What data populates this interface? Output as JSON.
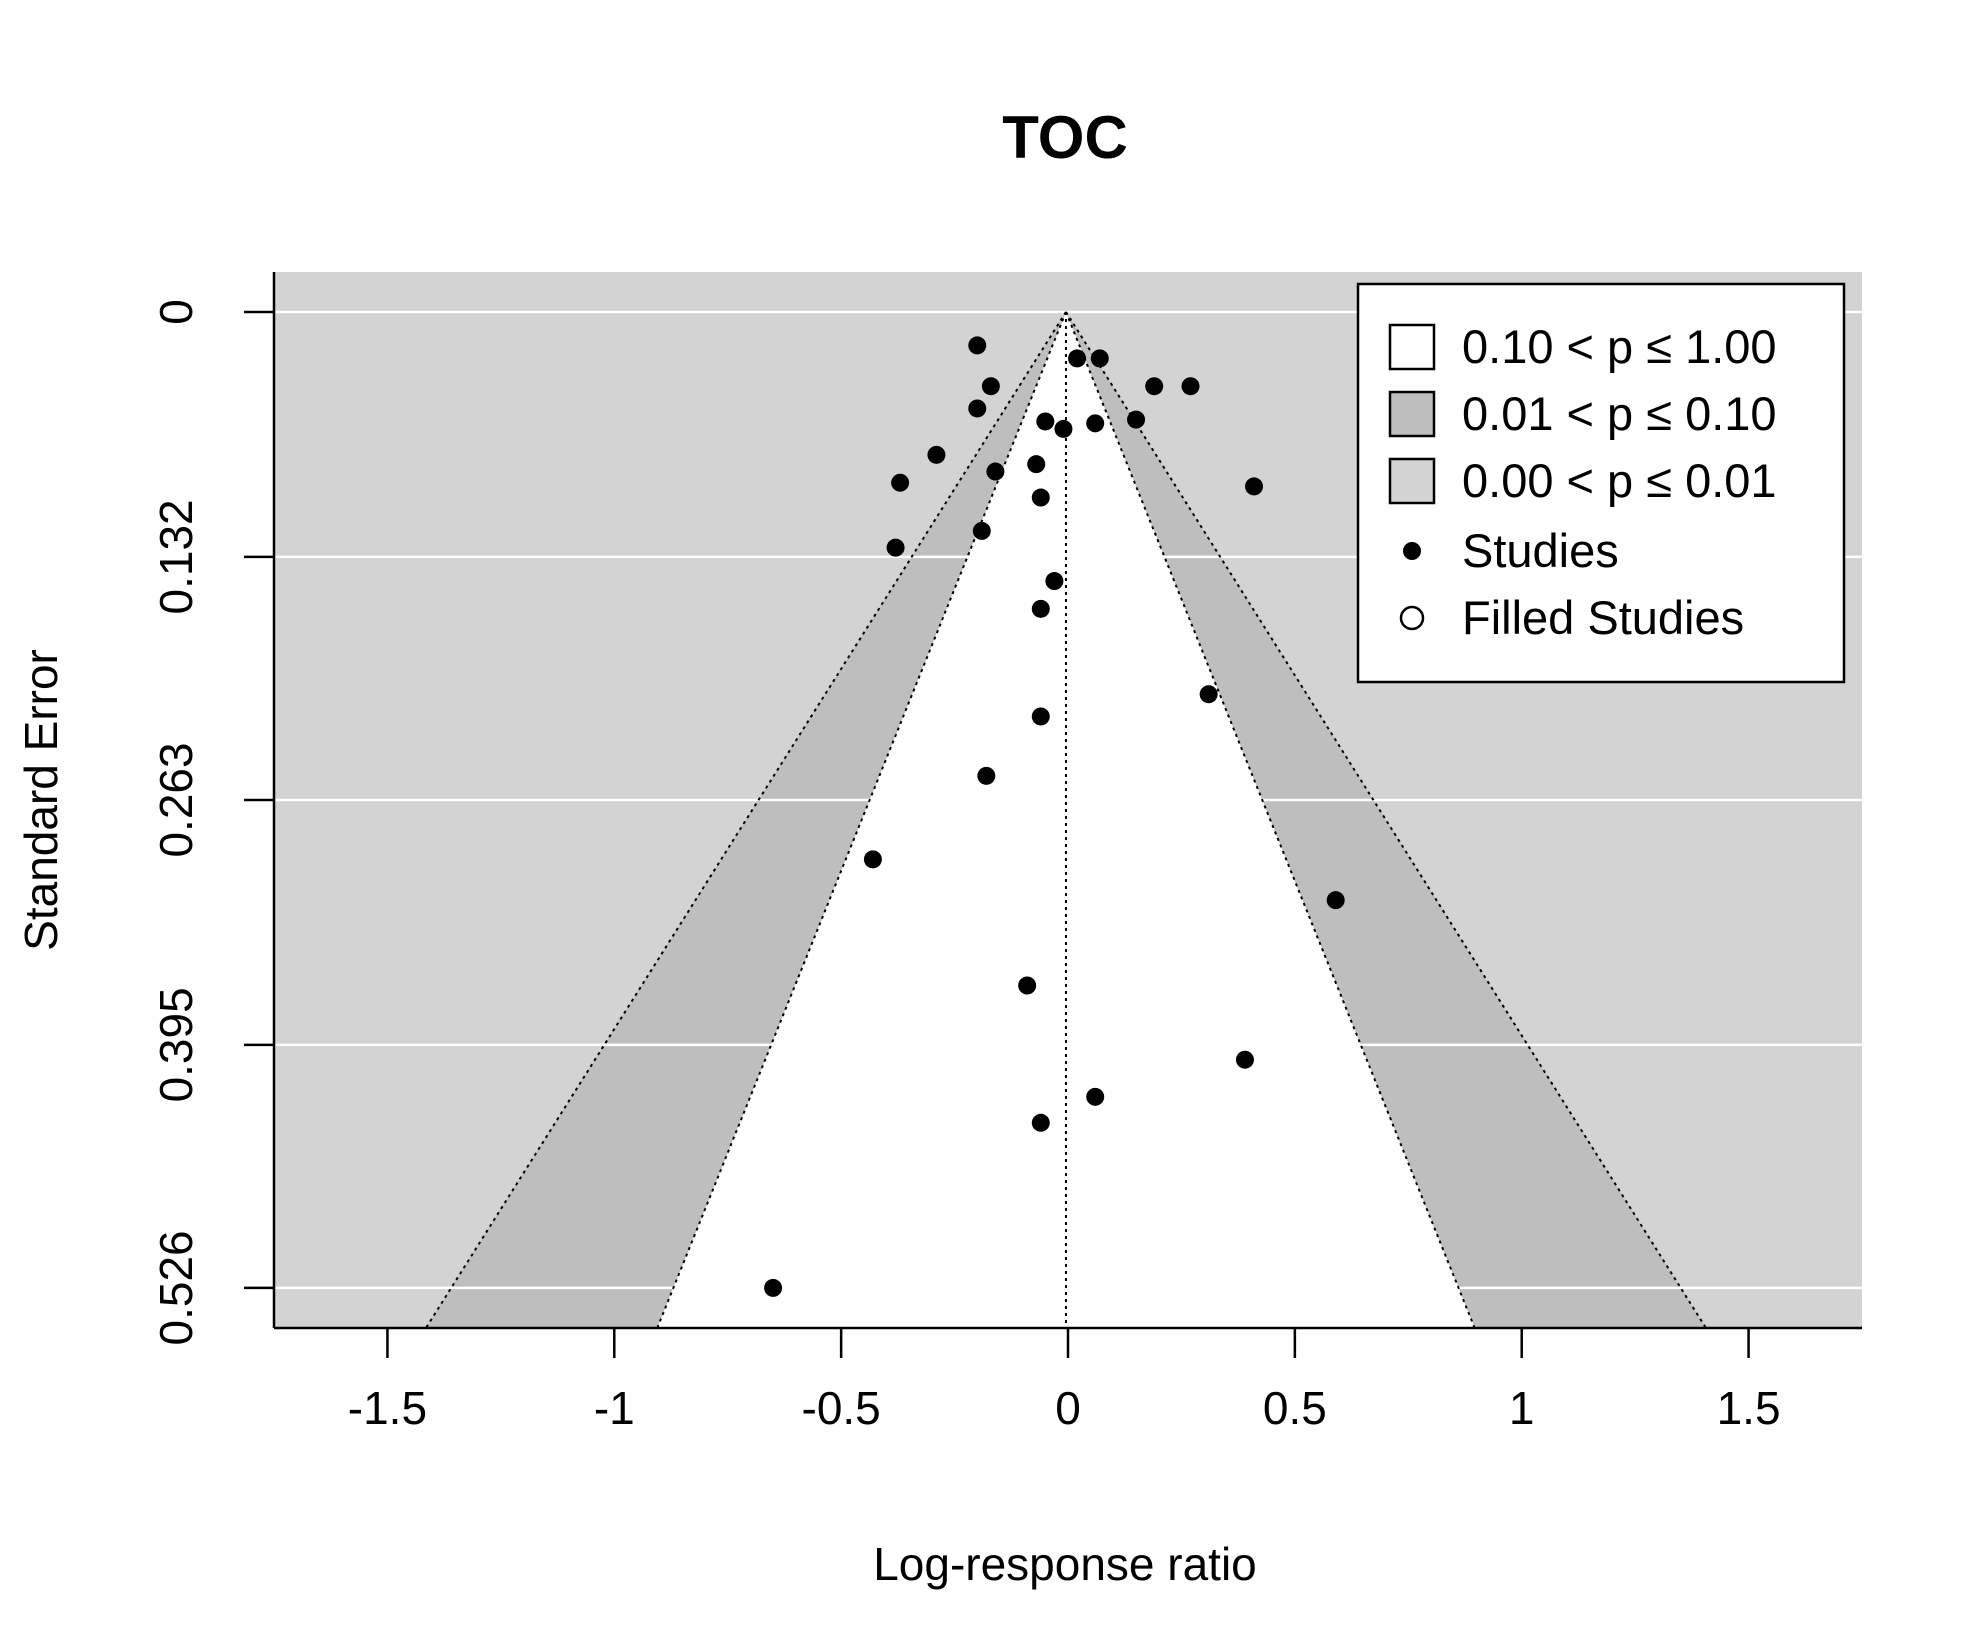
{
  "chart_data": {
    "type": "scatter",
    "subtype": "contour-enhanced funnel plot",
    "title": "TOC",
    "xlabel": "Log-response ratio",
    "ylabel": "Standard Error",
    "xlim": [
      -1.75,
      1.75
    ],
    "ylim": [
      0.5476,
      0
    ],
    "y_reversed": true,
    "x_ticks": [
      -1.5,
      -1,
      -0.5,
      0,
      0.5,
      1,
      1.5
    ],
    "x_tick_labels": [
      "-1.5",
      "-1",
      "-0.5",
      "0",
      "0.5",
      "1",
      "1.5"
    ],
    "y_ticks": [
      0,
      0.132,
      0.263,
      0.395,
      0.526
    ],
    "y_tick_labels": [
      "0",
      "0.132",
      "0.263",
      "0.395",
      "0.526"
    ],
    "grid": "horizontal at y ticks (white)",
    "center": -0.0045,
    "contour_z": [
      1.645,
      2.576
    ],
    "colors": {
      "background": "#d3d3d3",
      "region_p_010_100": "#ffffff",
      "region_p_001_010": "#bebebe",
      "region_p_000_001": "#d3d3d3",
      "gridline": "#ffffff",
      "point": "#000000"
    },
    "legend": {
      "position": "top-right",
      "entries": [
        {
          "label": "0.10 < p ≤ 1.00",
          "symbol": "square",
          "fill": "#ffffff"
        },
        {
          "label": "0.01 < p ≤ 0.10",
          "symbol": "square",
          "fill": "#bebebe"
        },
        {
          "label": "0.00 < p ≤ 0.01",
          "symbol": "square",
          "fill": "#d3d3d3"
        },
        {
          "label": "Studies",
          "symbol": "filled-circle"
        },
        {
          "label": "Filled Studies",
          "symbol": "open-circle"
        }
      ]
    },
    "series": [
      {
        "name": "Studies",
        "points": [
          {
            "x": -0.2,
            "y": 0.018
          },
          {
            "x": 0.02,
            "y": 0.025
          },
          {
            "x": 0.07,
            "y": 0.025
          },
          {
            "x": -0.17,
            "y": 0.04
          },
          {
            "x": 0.19,
            "y": 0.04
          },
          {
            "x": 0.27,
            "y": 0.04
          },
          {
            "x": -0.2,
            "y": 0.052
          },
          {
            "x": -0.05,
            "y": 0.059
          },
          {
            "x": 0.06,
            "y": 0.06
          },
          {
            "x": 0.15,
            "y": 0.058
          },
          {
            "x": -0.01,
            "y": 0.063
          },
          {
            "x": -0.29,
            "y": 0.077
          },
          {
            "x": -0.07,
            "y": 0.082
          },
          {
            "x": -0.16,
            "y": 0.086
          },
          {
            "x": -0.37,
            "y": 0.092
          },
          {
            "x": 0.41,
            "y": 0.094
          },
          {
            "x": -0.06,
            "y": 0.1
          },
          {
            "x": -0.19,
            "y": 0.118
          },
          {
            "x": -0.38,
            "y": 0.127
          },
          {
            "x": -0.03,
            "y": 0.145
          },
          {
            "x": -0.06,
            "y": 0.16
          },
          {
            "x": 0.31,
            "y": 0.206
          },
          {
            "x": -0.06,
            "y": 0.218
          },
          {
            "x": -0.18,
            "y": 0.25
          },
          {
            "x": -0.43,
            "y": 0.295
          },
          {
            "x": 0.59,
            "y": 0.317
          },
          {
            "x": -0.09,
            "y": 0.363
          },
          {
            "x": 0.39,
            "y": 0.403
          },
          {
            "x": 0.06,
            "y": 0.423
          },
          {
            "x": -0.06,
            "y": 0.437
          },
          {
            "x": -0.65,
            "y": 0.526
          }
        ]
      }
    ]
  }
}
